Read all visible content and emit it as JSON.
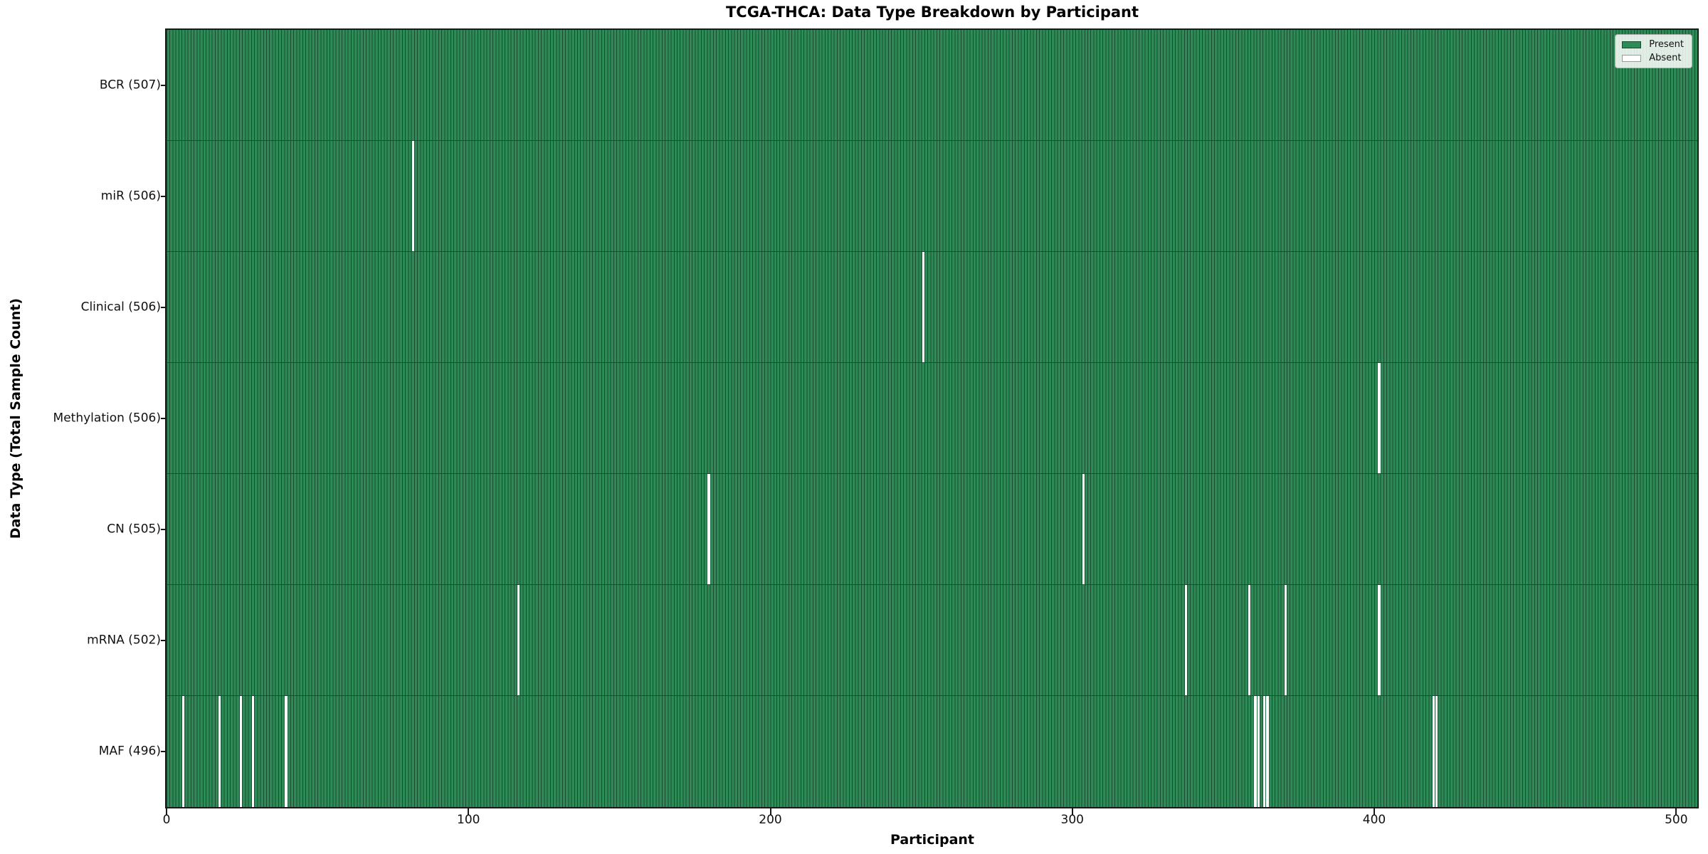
{
  "colors": {
    "present": "#2E8B57",
    "absent": "#FFFFFF",
    "bar_edge": "#1A4D30",
    "axis": "#1A1A1A",
    "legend_bg": "rgba(255,255,255,0.85)",
    "legend_border": "#B0B0B0"
  },
  "chart_data": {
    "type": "heatmap",
    "title": "TCGA-THCA: Data Type Breakdown by Participant",
    "xlabel": "Participant",
    "ylabel": "Data Type (Total Sample Count)",
    "x_range": [
      0,
      507
    ],
    "x_ticks": [
      0,
      100,
      200,
      300,
      400,
      500
    ],
    "total_participants": 507,
    "grid": false,
    "legend": {
      "position": "upper right",
      "entries": [
        {
          "label": "Present",
          "color": "#2E8B57"
        },
        {
          "label": "Absent",
          "color": "#FFFFFF"
        }
      ]
    },
    "rows": [
      {
        "label": "BCR (507)",
        "data_type": "BCR",
        "present_count": 507,
        "absent_participants": []
      },
      {
        "label": "miR (506)",
        "data_type": "miR",
        "present_count": 506,
        "absent_participants": [
          81
        ]
      },
      {
        "label": "Clinical (506)",
        "data_type": "Clinical",
        "present_count": 506,
        "absent_participants": [
          250
        ]
      },
      {
        "label": "Methylation (506)",
        "data_type": "Methylation",
        "present_count": 506,
        "absent_participants": [
          401
        ]
      },
      {
        "label": "CN (505)",
        "data_type": "CN",
        "present_count": 505,
        "absent_participants": [
          179,
          303
        ]
      },
      {
        "label": "mRNA (502)",
        "data_type": "mRNA",
        "present_count": 502,
        "absent_participants": [
          116,
          337,
          358,
          370,
          401
        ]
      },
      {
        "label": "MAF (496)",
        "data_type": "MAF",
        "present_count": 496,
        "absent_participants": [
          5,
          17,
          24,
          28,
          39,
          360,
          361,
          363,
          364,
          419,
          420
        ]
      }
    ]
  }
}
